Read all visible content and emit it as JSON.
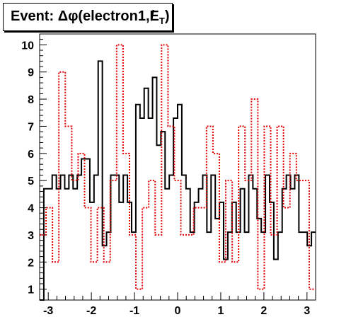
{
  "chart_data": {
    "type": "histogram",
    "title": "Event: Δφ(electron1,E̸T)",
    "title_parts": {
      "prefix": "Event: ",
      "delta": "Δ",
      "phi": "φ",
      "open": "(",
      "arg1": "electron1,",
      "met": "E",
      "met_sub": "T",
      "close": ")"
    },
    "xlabel": "",
    "ylabel": "",
    "xlim": [
      -3.2,
      3.2
    ],
    "ylim": [
      0.6,
      10.4
    ],
    "x_ticks": [
      -3,
      -2,
      -1,
      0,
      1,
      2,
      3
    ],
    "x_tick_labels": [
      "-3",
      "-2",
      "-1",
      "0",
      "1",
      "2",
      "3"
    ],
    "y_ticks": [
      1,
      2,
      3,
      4,
      5,
      6,
      7,
      8,
      9,
      10
    ],
    "y_tick_labels": [
      "1",
      "2",
      "3",
      "4",
      "5",
      "6",
      "7",
      "8",
      "9",
      "10"
    ],
    "grid": false,
    "legend": "none",
    "bin_edges_min": -3.2,
    "bin_width": 0.1,
    "series": [
      {
        "style": "solid",
        "color": "#000000",
        "values": [
          0.6,
          4.7,
          4.7,
          5.2,
          4.7,
          5.2,
          4.7,
          5.2,
          4.7,
          5.2,
          5.8,
          5.8,
          4.2,
          5.2,
          9.4,
          2.6,
          3.1,
          5.2,
          5.2,
          4.2,
          5.2,
          4.2,
          3.1,
          7.8,
          7.3,
          8.4,
          7.3,
          8.8,
          6.3,
          6.8,
          4.7,
          5.2,
          7.3,
          7.8,
          5.2,
          4.7,
          3.1,
          4.2,
          4.7,
          5.2,
          3.1,
          5.2,
          3.6,
          4.2,
          2.1,
          3.1,
          4.2,
          3.1,
          4.7,
          3.1,
          5.2,
          4.7,
          3.6,
          3.1,
          5.2,
          4.2,
          2.1,
          3.1,
          4.7,
          5.2,
          4.7,
          5.2,
          3.1,
          3.1,
          2.6,
          3.1
        ]
      },
      {
        "style": "dotted",
        "color": "#e00000",
        "values": [
          3.0,
          4.0,
          2.0,
          9.0,
          7.0,
          5.0,
          6.0,
          4.0,
          2.0,
          4.0,
          2.0,
          5.0,
          10.0,
          6.0,
          3.0,
          1.0,
          4.0,
          5.0,
          3.0,
          10.0,
          7.0,
          5.0,
          3.0,
          3.0,
          4.0,
          4.0,
          7.0,
          6.0,
          2.0,
          5.0,
          2.0,
          7.0,
          5.0,
          8.0,
          1.0,
          7.0,
          3.0,
          7.0,
          4.0,
          6.0,
          5.0,
          5.0,
          1.0
        ]
      }
    ]
  }
}
